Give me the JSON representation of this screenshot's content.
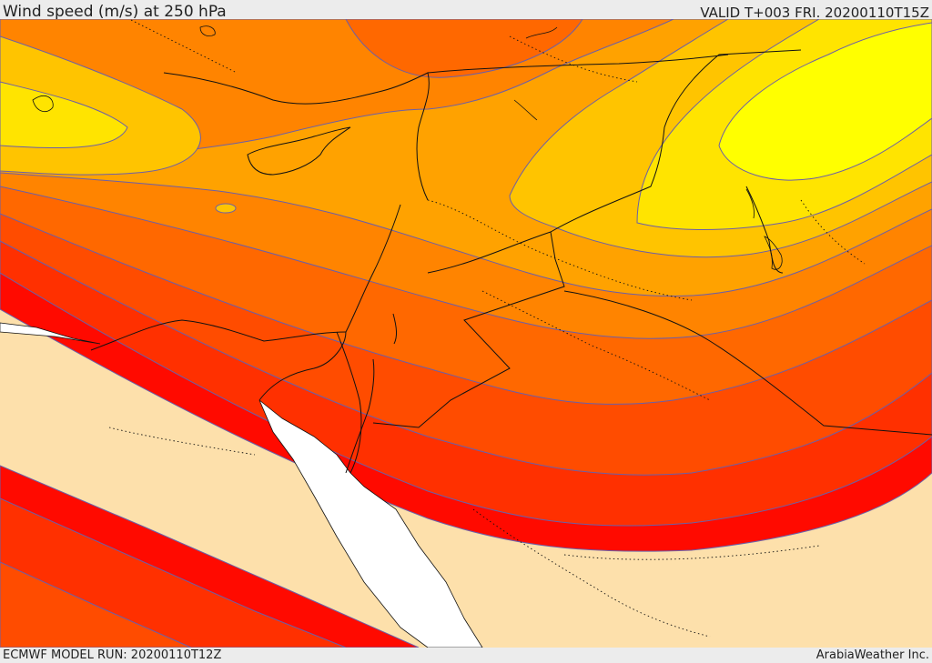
{
  "header": {
    "title": "Wind speed (m/s) at 250 hPa",
    "valid": "VALID T+003 FRI. 20200110T15Z"
  },
  "footer": {
    "model_run": "ECMWF MODEL RUN: 20200110T12Z",
    "credit": "ArabiaWeather Inc."
  },
  "map": {
    "field": "250 hPa wind speed",
    "palette": {
      "background": "#fde0ab",
      "sea": "#ffffff",
      "band_1": "#ffff00",
      "band_2": "#ffe400",
      "band_3": "#ffc400",
      "band_4": "#ffa200",
      "band_5": "#ff8400",
      "band_6": "#ff6800",
      "band_7": "#ff4c00",
      "band_8": "#ff3000",
      "band_9": "#ff0a00",
      "contour": "#6b5fa8",
      "borders": "#111111"
    }
  }
}
